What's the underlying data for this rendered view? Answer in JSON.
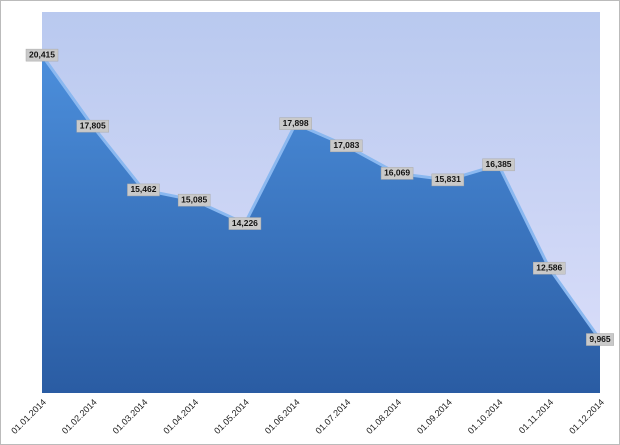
{
  "chart_data": {
    "type": "area",
    "categories": [
      "01.01.2014",
      "01.02.2014",
      "01.03.2014",
      "01.04.2014",
      "01.05.2014",
      "01.06.2014",
      "01.07.2014",
      "01.08.2014",
      "01.09.2014",
      "01.10.2014",
      "01.11.2014",
      "01.12.2014"
    ],
    "values": [
      20415,
      17805,
      15462,
      15085,
      14226,
      17898,
      17083,
      16069,
      15831,
      16385,
      12586,
      9965
    ],
    "value_labels": [
      "20,415",
      "17,805",
      "15,462",
      "15,085",
      "14,226",
      "17,898",
      "17,083",
      "16,069",
      "15,831",
      "16,385",
      "12,586",
      "9,965"
    ],
    "color": "#3a76c8",
    "ylim": [
      8000,
      22000
    ]
  }
}
